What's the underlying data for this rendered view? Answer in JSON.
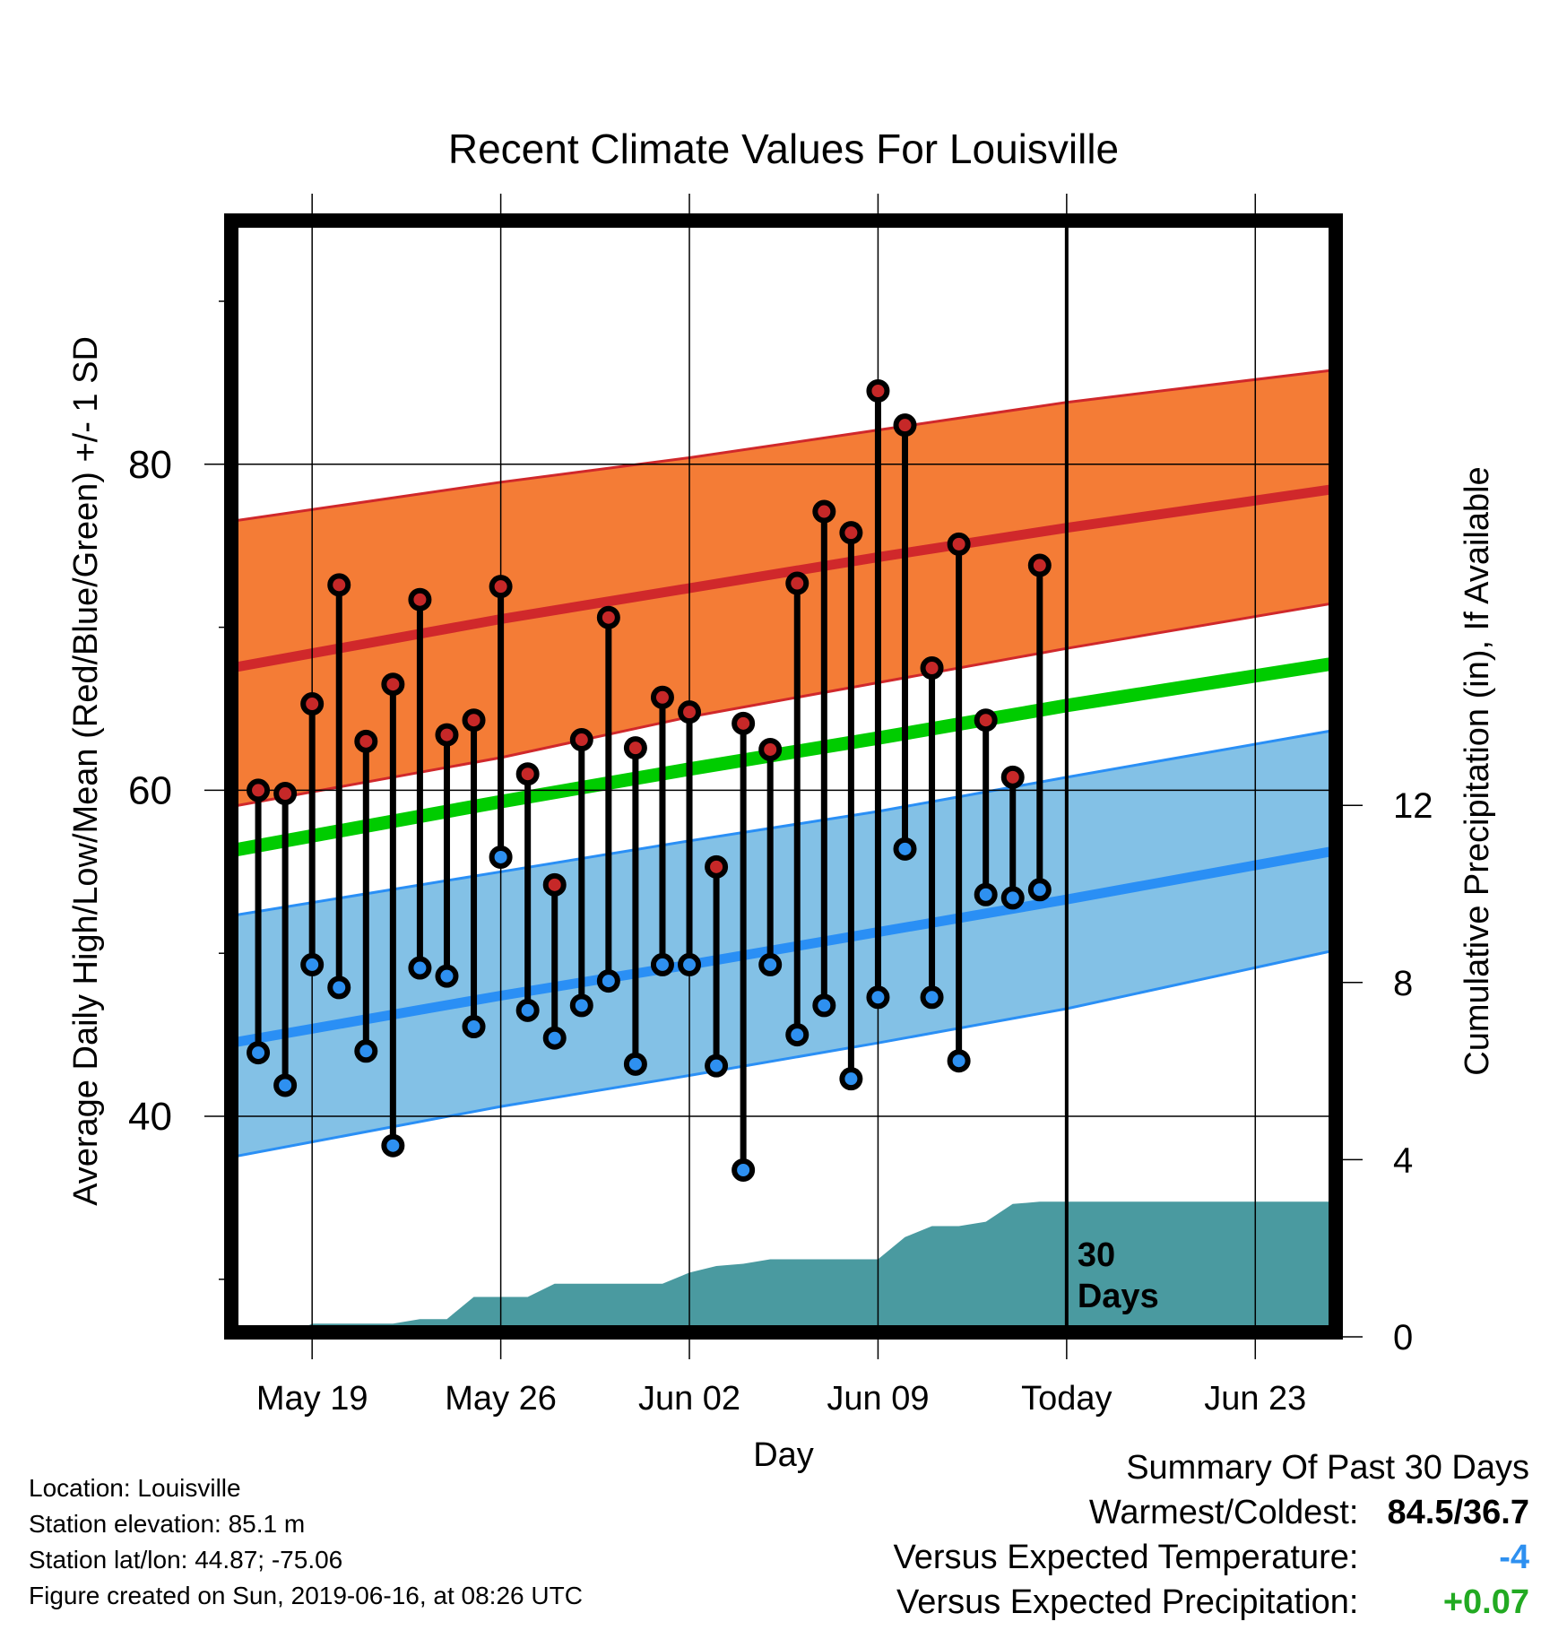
{
  "chart_data": {
    "type": "line",
    "title": "Recent Climate Values For Louisville",
    "xlabel": "Day",
    "ylabel": "Average Daily High/Low/Mean (Red/Blue/Green) +/- 1 SD",
    "y2label": "Cumulative Precipitation (in), If Available",
    "x_tick_labels": [
      "May 19",
      "May 26",
      "Jun 02",
      "Jun 09",
      "Today",
      "Jun 23"
    ],
    "y_ticks": [
      40,
      60,
      80
    ],
    "y2_ticks": [
      0,
      4,
      8,
      12
    ],
    "ylim": [
      27,
      95
    ],
    "y2lim": [
      0,
      25
    ],
    "x_range_days": [
      "2019-05-16",
      "2019-06-26"
    ],
    "today_line_label": "30\nDays",
    "grid": true,
    "colors": {
      "high_band": "#f47c36",
      "high_mean": "#d0282b",
      "low_band": "#83c1e6",
      "low_mean": "#2a8ff5",
      "mean": "#00cc00",
      "precip": "#4a9aa0",
      "high_marker": "#c62828",
      "low_marker": "#2e90f0"
    },
    "normals": {
      "dates": [
        "2019-05-16",
        "2019-05-26",
        "2019-06-02",
        "2019-06-09",
        "2019-06-16",
        "2019-06-26"
      ],
      "high_mean": [
        67.5,
        70.5,
        72.4,
        74.3,
        76.1,
        78.5
      ],
      "high_upper": [
        76.5,
        78.9,
        80.4,
        82.1,
        83.8,
        85.8
      ],
      "high_lower": [
        59.0,
        62.0,
        64.5,
        66.6,
        68.7,
        71.5
      ],
      "low_mean": [
        44.5,
        47.4,
        49.3,
        51.3,
        53.3,
        56.3
      ],
      "low_upper": [
        52.3,
        55.0,
        56.9,
        58.7,
        60.8,
        63.7
      ],
      "low_lower": [
        37.5,
        40.6,
        42.5,
        44.5,
        46.6,
        50.2
      ],
      "daily_mean": [
        56.3,
        59.3,
        61.3,
        63.2,
        65.2,
        67.8
      ]
    },
    "observations": {
      "dates": [
        "2019-05-17",
        "2019-05-18",
        "2019-05-19",
        "2019-05-20",
        "2019-05-21",
        "2019-05-22",
        "2019-05-23",
        "2019-05-24",
        "2019-05-25",
        "2019-05-26",
        "2019-05-27",
        "2019-05-28",
        "2019-05-29",
        "2019-05-30",
        "2019-05-31",
        "2019-06-01",
        "2019-06-02",
        "2019-06-03",
        "2019-06-04",
        "2019-06-05",
        "2019-06-06",
        "2019-06-07",
        "2019-06-08",
        "2019-06-09",
        "2019-06-10",
        "2019-06-11",
        "2019-06-12",
        "2019-06-13",
        "2019-06-14",
        "2019-06-15"
      ],
      "high": [
        60.0,
        59.8,
        65.3,
        72.6,
        63.0,
        66.5,
        71.7,
        63.4,
        64.3,
        72.5,
        61.0,
        54.2,
        63.1,
        70.6,
        62.6,
        65.7,
        64.8,
        55.3,
        64.1,
        62.5,
        72.7,
        77.1,
        75.8,
        84.5,
        82.4,
        67.5,
        75.1,
        64.3,
        60.8,
        73.8
      ],
      "low": [
        43.9,
        41.9,
        49.3,
        47.9,
        44.0,
        38.2,
        49.1,
        48.6,
        45.5,
        55.9,
        46.5,
        44.8,
        46.8,
        48.3,
        43.2,
        49.3,
        49.3,
        43.1,
        36.7,
        49.3,
        45.0,
        46.8,
        42.3,
        47.3,
        56.4,
        47.3,
        43.4,
        53.6,
        53.4,
        53.9
      ]
    },
    "precip_cumulative": {
      "dates": [
        "2019-05-16",
        "2019-05-18",
        "2019-05-19",
        "2019-05-20",
        "2019-05-21",
        "2019-05-22",
        "2019-05-23",
        "2019-05-24",
        "2019-05-25",
        "2019-05-26",
        "2019-05-27",
        "2019-05-28",
        "2019-05-29",
        "2019-05-30",
        "2019-05-31",
        "2019-06-01",
        "2019-06-02",
        "2019-06-03",
        "2019-06-04",
        "2019-06-05",
        "2019-06-06",
        "2019-06-07",
        "2019-06-08",
        "2019-06-09",
        "2019-06-10",
        "2019-06-11",
        "2019-06-12",
        "2019-06-13",
        "2019-06-14",
        "2019-06-15",
        "2019-06-26"
      ],
      "values": [
        0.0,
        0.0,
        0.3,
        0.3,
        0.3,
        0.3,
        0.4,
        0.4,
        0.9,
        0.9,
        0.9,
        1.2,
        1.2,
        1.2,
        1.2,
        1.2,
        1.45,
        1.6,
        1.65,
        1.75,
        1.75,
        1.75,
        1.75,
        1.75,
        2.25,
        2.5,
        2.5,
        2.6,
        3.0,
        3.05,
        3.05
      ]
    }
  },
  "info": {
    "location": "Location: Louisville",
    "elevation": "Station elevation: 85.1 m",
    "latlon": "Station lat/lon: 44.87; -75.06",
    "created": "Figure created on Sun, 2019-06-16, at 08:26 UTC"
  },
  "summary": {
    "title": "Summary Of Past 30 Days",
    "warmest_coldest_label": "Warmest/Coldest:",
    "warmest_coldest_value": "84.5/36.7",
    "temp_label": "Versus Expected Temperature:",
    "temp_value": "-4",
    "temp_color": "#2e90f0",
    "precip_label": "Versus Expected Precipitation:",
    "precip_value": "+0.07",
    "precip_color": "#22aa22"
  }
}
